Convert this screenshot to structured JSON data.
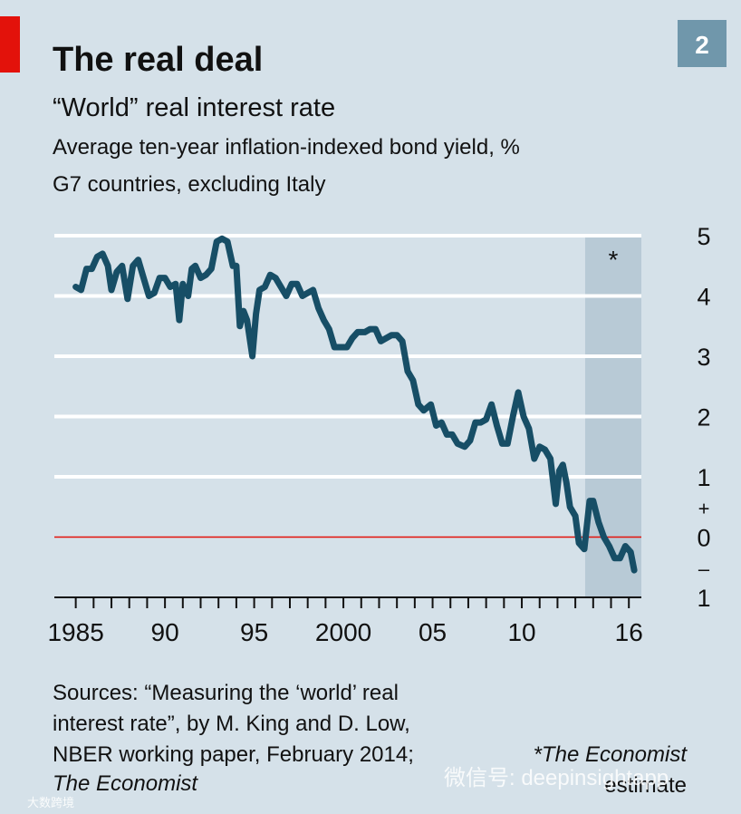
{
  "chart_data": {
    "type": "line",
    "chart_number": "2",
    "title": "The real deal",
    "subtitle": "“World” real interest rate",
    "description": [
      "Average ten-year inflation-indexed bond yield, %",
      "G7 countries, excluding Italy"
    ],
    "series": [
      {
        "color": "#174e66",
        "x": [
          1985.0,
          1985.3,
          1985.6,
          1985.9,
          1986.2,
          1986.5,
          1986.8,
          1987.0,
          1987.3,
          1987.6,
          1987.9,
          1988.2,
          1988.5,
          1988.8,
          1989.1,
          1989.4,
          1989.7,
          1990.0,
          1990.3,
          1990.6,
          1990.8,
          1991.0,
          1991.3,
          1991.5,
          1991.7,
          1992.0,
          1992.3,
          1992.6,
          1992.9,
          1993.2,
          1993.5,
          1993.8,
          1994.0,
          1994.2,
          1994.4,
          1994.6,
          1994.9,
          1995.1,
          1995.3,
          1995.6,
          1995.9,
          1996.2,
          1996.5,
          1996.8,
          1997.1,
          1997.4,
          1997.7,
          1998.0,
          1998.3,
          1998.6,
          1998.9,
          1999.2,
          1999.5,
          1999.8,
          2000.2,
          2000.5,
          2000.8,
          2001.2,
          2001.5,
          2001.8,
          2002.1,
          2002.4,
          2002.7,
          2003.0,
          2003.3,
          2003.6,
          2003.9,
          2004.2,
          2004.5,
          2004.9,
          2005.2,
          2005.5,
          2005.8,
          2006.1,
          2006.4,
          2006.8,
          2007.1,
          2007.4,
          2007.7,
          2008.0,
          2008.3,
          2008.6,
          2008.9,
          2009.2,
          2009.5,
          2009.8,
          2010.1,
          2010.4,
          2010.7,
          2011.0,
          2011.3,
          2011.6,
          2011.9,
          2012.1,
          2012.3,
          2012.5,
          2012.7,
          2013.0,
          2013.2,
          2013.5,
          2013.8,
          2014.0,
          2014.3,
          2014.6,
          2014.9,
          2015.2,
          2015.5,
          2015.8,
          2016.1,
          2016.3
        ],
        "values": [
          4.15,
          4.1,
          4.45,
          4.45,
          4.65,
          4.7,
          4.5,
          4.1,
          4.4,
          4.5,
          3.95,
          4.5,
          4.6,
          4.3,
          4.0,
          4.05,
          4.3,
          4.3,
          4.15,
          4.2,
          3.6,
          4.2,
          4.0,
          4.45,
          4.5,
          4.3,
          4.35,
          4.45,
          4.9,
          4.95,
          4.9,
          4.5,
          4.5,
          3.5,
          3.75,
          3.6,
          3.0,
          3.7,
          4.1,
          4.15,
          4.35,
          4.3,
          4.15,
          4.0,
          4.2,
          4.2,
          4.0,
          4.05,
          4.1,
          3.8,
          3.6,
          3.45,
          3.15,
          3.15,
          3.15,
          3.3,
          3.4,
          3.4,
          3.45,
          3.45,
          3.25,
          3.3,
          3.35,
          3.35,
          3.25,
          2.75,
          2.6,
          2.2,
          2.1,
          2.2,
          1.85,
          1.9,
          1.7,
          1.7,
          1.55,
          1.5,
          1.6,
          1.9,
          1.9,
          1.95,
          2.2,
          1.85,
          1.55,
          1.55,
          2.0,
          2.4,
          2.0,
          1.8,
          1.3,
          1.5,
          1.45,
          1.3,
          0.55,
          1.1,
          1.2,
          0.9,
          0.5,
          0.35,
          -0.1,
          -0.2,
          0.6,
          0.6,
          0.25,
          0.0,
          -0.15,
          -0.35,
          -0.35,
          -0.15,
          -0.25,
          -0.55
        ]
      }
    ],
    "xlim": [
      1983.8,
      2016.7
    ],
    "xticks": [
      1985,
      {
        "value": 1990,
        "label": "90"
      },
      {
        "value": 1995,
        "label": "95"
      },
      2000,
      {
        "value": 2005,
        "label": "05"
      },
      {
        "value": 2010,
        "label": "10"
      },
      {
        "value": 2016,
        "label": "16"
      }
    ],
    "xminorticks": [
      1985,
      1986,
      1987,
      1988,
      1989,
      1990,
      1991,
      1992,
      1993,
      1994,
      1995,
      1996,
      1997,
      1998,
      1999,
      2000,
      2001,
      2002,
      2003,
      2004,
      2005,
      2006,
      2007,
      2008,
      2009,
      2010,
      2011,
      2012,
      2013,
      2014,
      2015,
      2016
    ],
    "ylim": [
      -1,
      5
    ],
    "yticks": [
      {
        "value": -1,
        "label": "1"
      },
      0,
      1,
      2,
      3,
      4,
      5
    ],
    "axis_signs": [
      "+",
      "–"
    ],
    "grid": true,
    "zero_line_color": "#e3120b",
    "shaded_span": [
      2013.55,
      2016.7
    ],
    "shaded_label": "*",
    "sources": [
      "Sources: “Measuring the ‘world’ real",
      "interest rate”, by M. King and D. Low,",
      "NBER working paper, February 2014;",
      "The Economist"
    ],
    "note": [
      "*The Economist",
      "estimate"
    ],
    "watermark": [
      "微信号: deepinsightapp",
      "大数跨境"
    ]
  }
}
